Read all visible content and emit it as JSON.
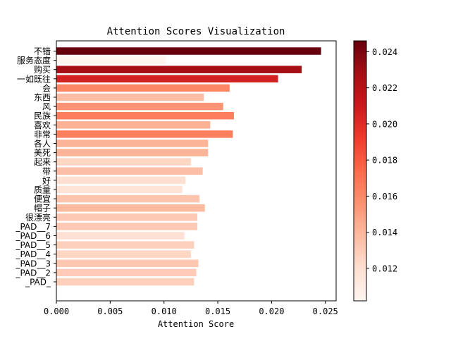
{
  "chart_data": {
    "type": "bar",
    "orientation": "horizontal",
    "title": "Attention Scores Visualization",
    "xlabel": "Attention Score",
    "ylabel": "",
    "xlim": [
      0,
      0.026
    ],
    "xticks": [
      "0.000",
      "0.005",
      "0.010",
      "0.015",
      "0.020",
      "0.025"
    ],
    "categories": [
      "不错",
      "服务态度",
      "购买",
      "一如既往",
      "会",
      "东西",
      "风",
      "民族",
      "喜欢",
      "非常",
      "各人",
      "美死",
      "起来",
      "带",
      "好",
      "质量",
      "便宜",
      "帽子",
      "很漂亮",
      "_PAD__7",
      "_PAD__6",
      "_PAD__5",
      "_PAD__4",
      "_PAD__3",
      "_PAD__2",
      "_PAD_"
    ],
    "values": [
      0.0246,
      0.0102,
      0.0228,
      0.0206,
      0.0161,
      0.0137,
      0.0155,
      0.0165,
      0.0143,
      0.0164,
      0.0141,
      0.0141,
      0.0125,
      0.0136,
      0.012,
      0.0117,
      0.0133,
      0.0138,
      0.0131,
      0.0131,
      0.0119,
      0.0128,
      0.0125,
      0.0132,
      0.013,
      0.0128
    ],
    "colormap": {
      "name": "Reds",
      "stops": [
        "#fff5f0",
        "#fee0d2",
        "#fcbba1",
        "#fc9272",
        "#fb6a4a",
        "#ef3b2c",
        "#cb181d",
        "#a50f15",
        "#67000d"
      ]
    },
    "colorbar": {
      "range": [
        0.0102,
        0.0246
      ],
      "ticks": [
        "0.012",
        "0.014",
        "0.016",
        "0.018",
        "0.020",
        "0.022",
        "0.024"
      ]
    },
    "grid": false,
    "legend": "none"
  }
}
